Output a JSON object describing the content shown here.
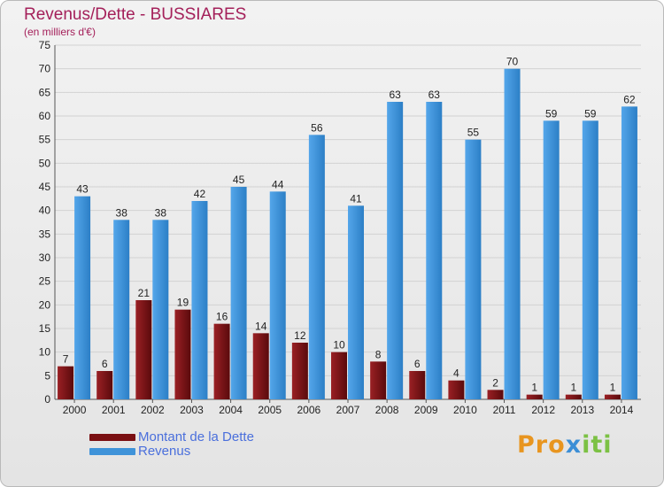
{
  "title": "Revenus/Dette - BUSSIARES",
  "subtitle": "(en milliers d'€)",
  "logo": {
    "text": "Proxiti",
    "colors": [
      "#e8951f",
      "#3b8ed6",
      "#7cc144"
    ]
  },
  "colors": {
    "debt": "#7a0f12",
    "revenue": "#3f93d9",
    "title": "#a4205a",
    "legend_text": "#4a6fdc"
  },
  "chart_data": {
    "type": "bar",
    "categories": [
      "2000",
      "2001",
      "2002",
      "2003",
      "2004",
      "2005",
      "2006",
      "2007",
      "2008",
      "2009",
      "2010",
      "2011",
      "2012",
      "2013",
      "2014"
    ],
    "series": [
      {
        "name": "Montant de la Dette",
        "values": [
          7,
          6,
          21,
          19,
          16,
          14,
          12,
          10,
          8,
          6,
          4,
          2,
          1,
          1,
          1
        ]
      },
      {
        "name": "Revenus",
        "values": [
          43,
          38,
          38,
          42,
          45,
          44,
          56,
          41,
          63,
          63,
          55,
          70,
          59,
          59,
          62
        ]
      }
    ],
    "ylim": [
      0,
      75
    ],
    "yticks": [
      0,
      5,
      10,
      15,
      20,
      25,
      30,
      35,
      40,
      45,
      50,
      55,
      60,
      65,
      70,
      75
    ],
    "grid": true,
    "legend": "bottom-left"
  }
}
